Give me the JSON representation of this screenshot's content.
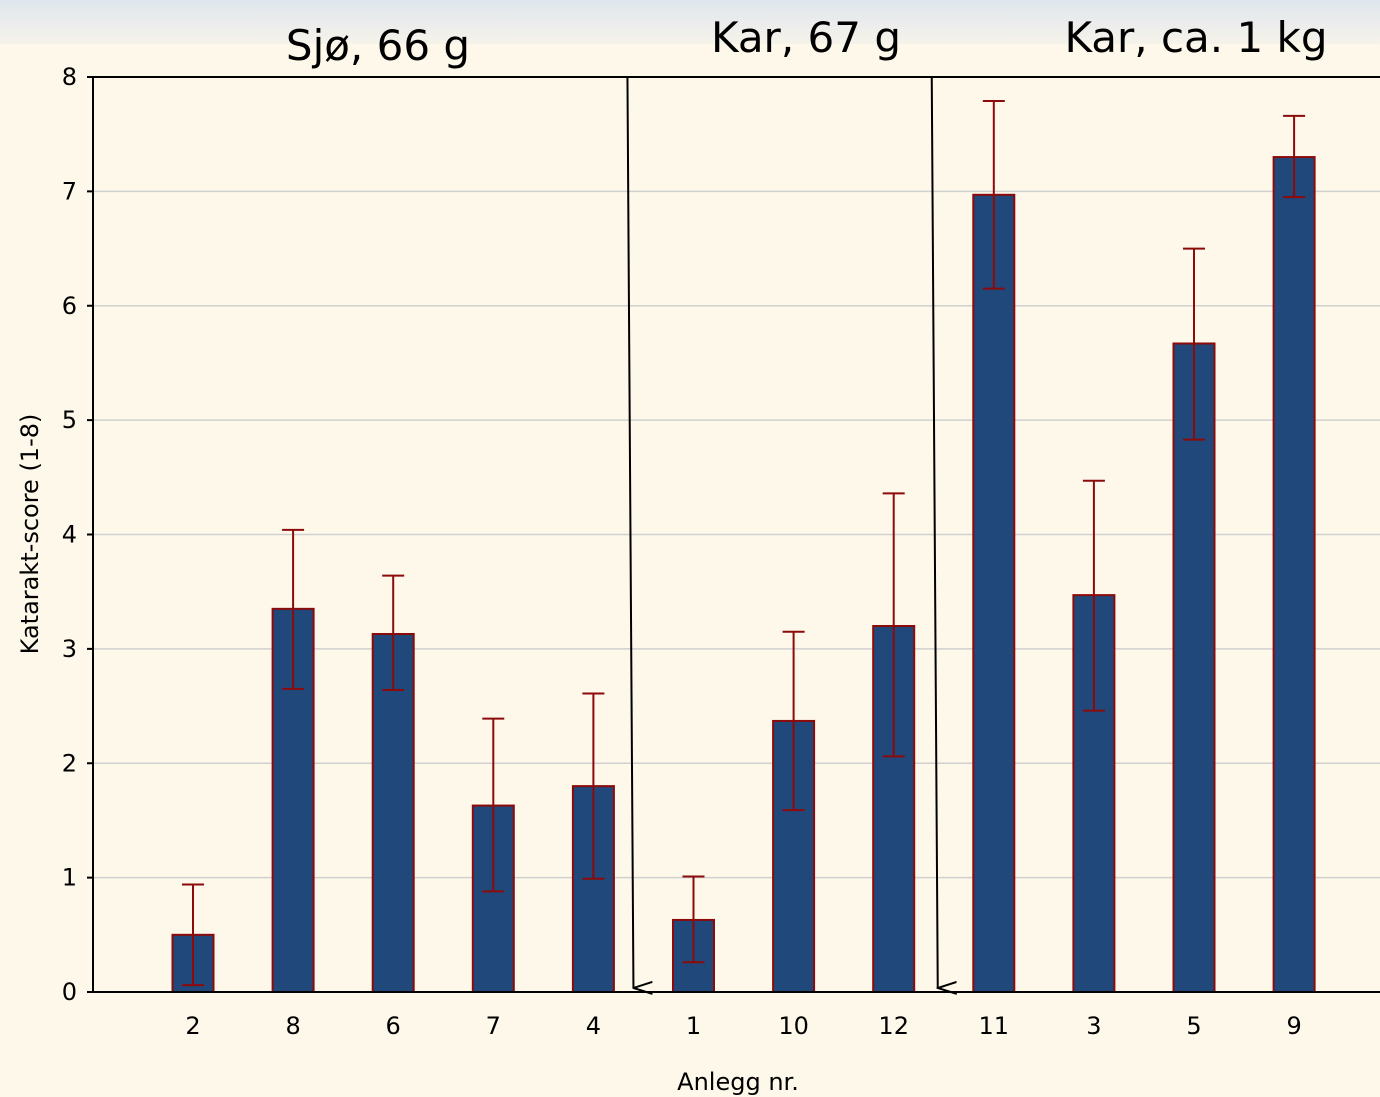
{
  "chart_data": {
    "type": "bar",
    "categories": [
      "2",
      "8",
      "6",
      "7",
      "4",
      "1",
      "10",
      "12",
      "11",
      "3",
      "5",
      "9"
    ],
    "values": [
      0.5,
      3.35,
      3.13,
      1.63,
      1.8,
      0.63,
      2.37,
      3.2,
      6.97,
      3.47,
      5.67,
      7.3
    ],
    "error_upper": [
      0.94,
      4.04,
      3.64,
      2.39,
      2.61,
      1.01,
      3.15,
      4.36,
      7.79,
      4.47,
      6.5,
      7.66
    ],
    "error_lower": [
      0.06,
      2.65,
      2.64,
      0.88,
      0.99,
      0.26,
      1.59,
      2.06,
      6.15,
      2.46,
      4.83,
      6.95
    ],
    "xlabel": "Anlegg nr.",
    "ylabel": "Katarakt-score (1-8)",
    "yticks": [
      "0",
      "1",
      "2",
      "3",
      "4",
      "5",
      "6",
      "7",
      "8"
    ],
    "ylim": [
      0,
      8
    ],
    "grid": "horizontal",
    "colors": {
      "bar_fill": "#21487a",
      "bar_edge": "#8b0a0a",
      "error_bar": "#8b0a0a",
      "grid": "#d0d0d0"
    },
    "groups": [
      {
        "label": "Sjø, 66 g",
        "categories": [
          "2",
          "8",
          "6",
          "7",
          "4"
        ]
      },
      {
        "label": "Kar, 67 g",
        "categories": [
          "1",
          "10",
          "12"
        ]
      },
      {
        "label": "Kar, ca. 1 kg",
        "categories": [
          "11",
          "3",
          "5",
          "9"
        ]
      }
    ]
  }
}
